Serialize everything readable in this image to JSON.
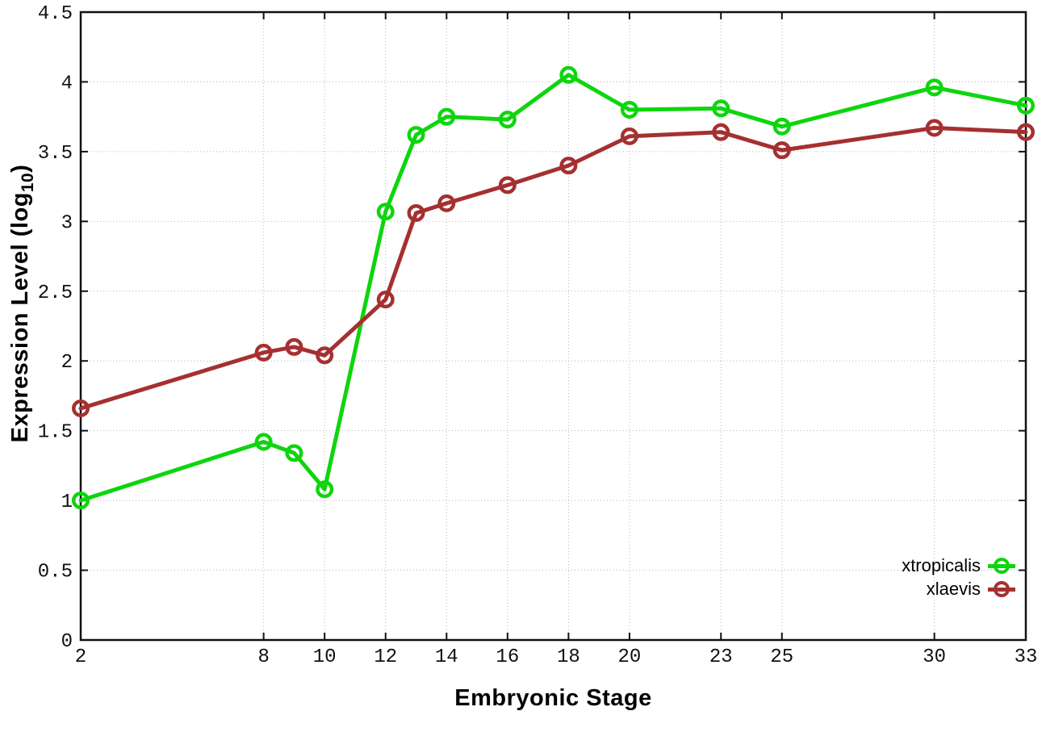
{
  "labels": {
    "ylabel_main": "Expression Level (log",
    "ylabel_sub": "10",
    "ylabel_close": ")"
  },
  "chart_data": {
    "type": "line",
    "title": "",
    "xlabel": "Embryonic Stage",
    "ylabel": "Expression Level (log10)",
    "x": [
      2,
      8,
      9,
      10,
      12,
      13,
      14,
      16,
      18,
      20,
      23,
      25,
      30,
      33
    ],
    "series": [
      {
        "name": "xtropicalis",
        "color": "#0ed50e",
        "values": [
          1.0,
          1.42,
          1.34,
          1.08,
          3.07,
          3.62,
          3.75,
          3.73,
          4.05,
          3.8,
          3.81,
          3.68,
          3.96,
          3.83
        ]
      },
      {
        "name": "xlaevis",
        "color": "#a53030",
        "values": [
          1.66,
          2.06,
          2.1,
          2.04,
          2.44,
          3.06,
          3.13,
          3.26,
          3.4,
          3.61,
          3.64,
          3.51,
          3.67,
          3.64
        ]
      }
    ],
    "xticks": [
      2,
      8,
      10,
      12,
      14,
      16,
      18,
      20,
      23,
      25,
      30,
      33
    ],
    "yticks": [
      0,
      0.5,
      1,
      1.5,
      2,
      2.5,
      3,
      3.5,
      4,
      4.5
    ],
    "xlim": [
      2,
      33
    ],
    "ylim": [
      0,
      4.5
    ],
    "grid": true,
    "grid_style": "dotted",
    "legend_position": "bottom-right-inside",
    "marker": "open-circle",
    "background": "#ffffff",
    "border_color": "#111111",
    "grid_color": "#b5b5b5"
  }
}
